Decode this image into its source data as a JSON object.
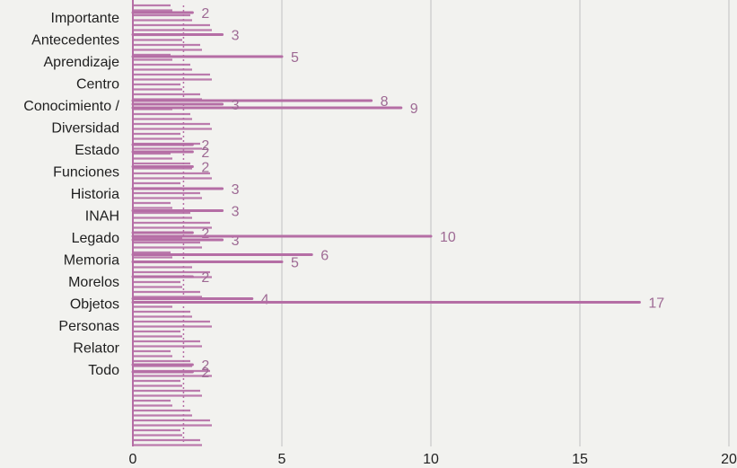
{
  "chart_data": {
    "type": "bar",
    "orientation": "horizontal",
    "categories": [
      "Importante",
      "Antecedentes",
      "Aprendizaje",
      "Centro",
      "Conocimiento /",
      "Diversidad",
      "Estado",
      "Funciones",
      "Historia",
      "INAH",
      "Legado",
      "Memoria",
      "Morelos",
      "Objetos",
      "Personas",
      "Relator",
      "Todo"
    ],
    "series": [
      {
        "values": [
          2,
          3,
          5,
          null,
          8,
          null,
          2,
          2,
          3,
          3,
          2,
          6,
          2,
          4,
          null,
          null,
          2
        ]
      },
      {
        "values": [
          null,
          null,
          null,
          null,
          9,
          null,
          2,
          null,
          null,
          null,
          3,
          5,
          null,
          null,
          null,
          null,
          2
        ]
      },
      {
        "values": [
          null,
          null,
          null,
          null,
          3,
          null,
          null,
          null,
          null,
          null,
          10,
          null,
          null,
          17,
          null,
          null,
          null
        ]
      }
    ],
    "xlim": [
      0,
      20
    ],
    "xticks": [
      "0",
      "5",
      "10",
      "15",
      "20"
    ],
    "grid": true,
    "colors": {
      "bar": "#b56ea5",
      "label": "#9e6a94",
      "grid": "#c9c9c9",
      "background_text": "#ddddda"
    }
  }
}
